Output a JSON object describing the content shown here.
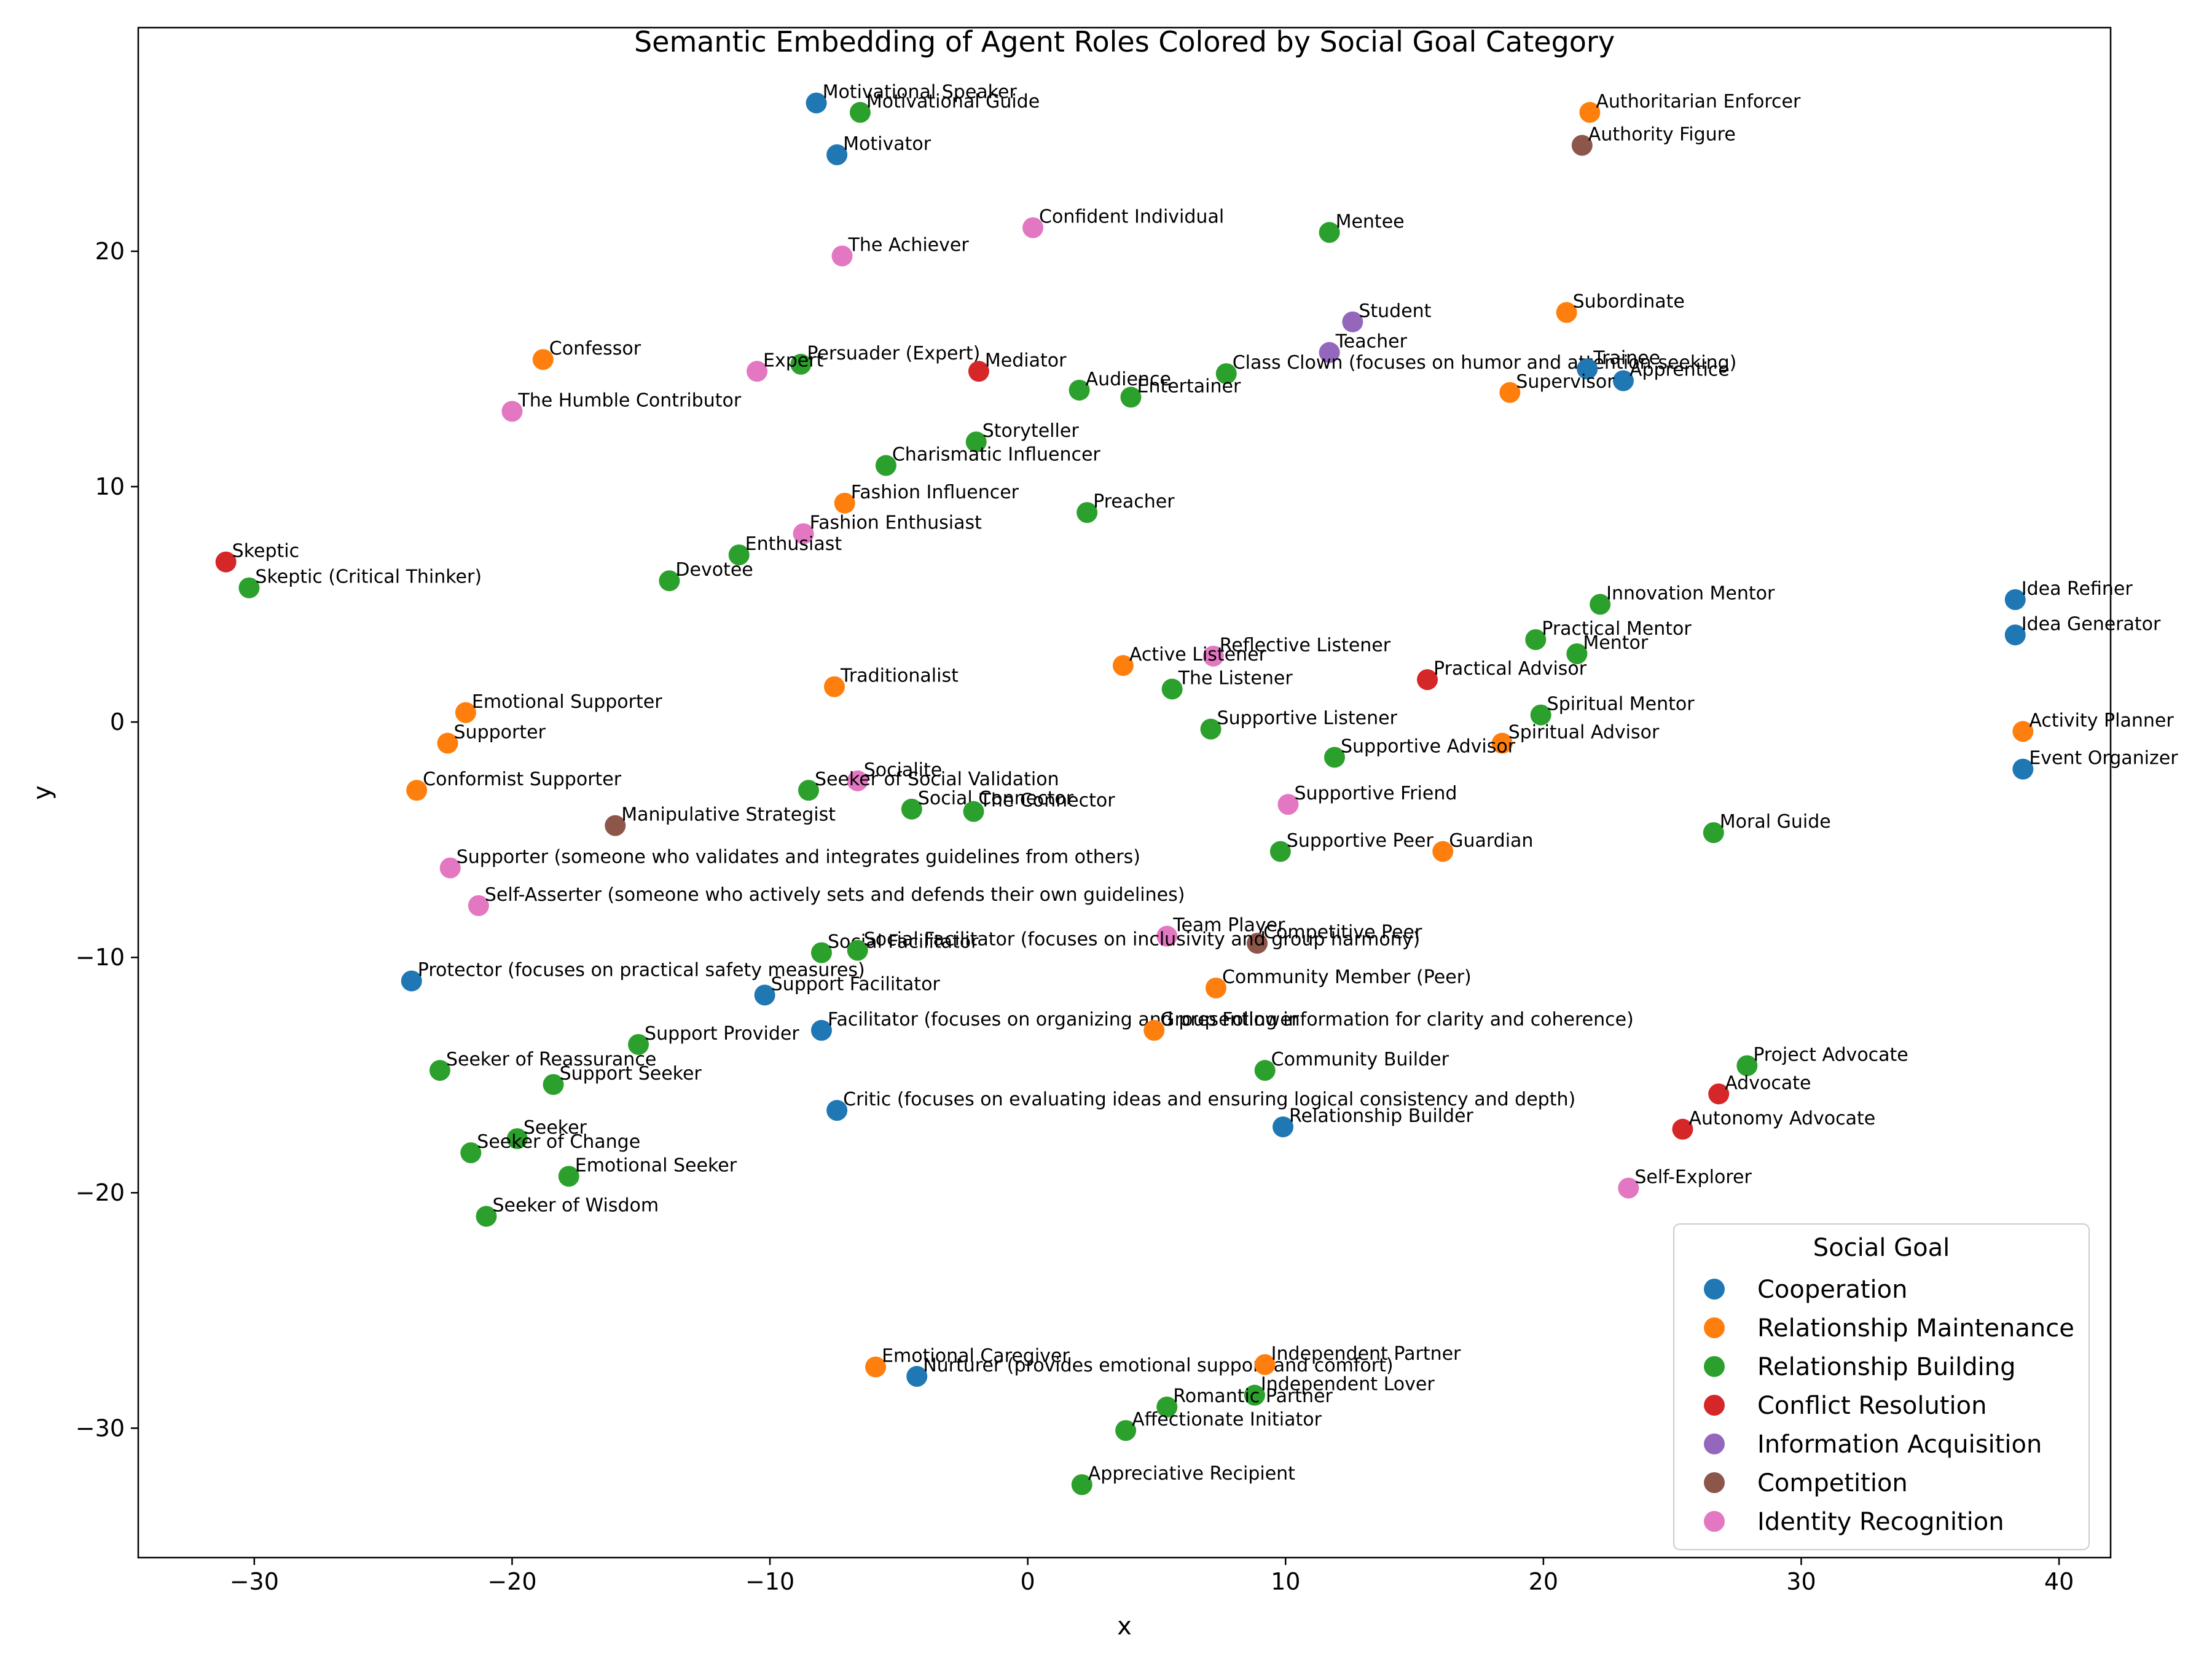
{
  "chart_data": {
    "type": "scatter",
    "title": "Semantic Embedding of Agent Roles Colored by Social Goal Category",
    "xlabel": "x",
    "ylabel": "y",
    "xlim": [
      -34.5,
      42
    ],
    "ylim": [
      -35.5,
      29.5
    ],
    "xticks": [
      -30,
      -20,
      -10,
      0,
      10,
      20,
      30,
      40
    ],
    "yticks": [
      -30,
      -20,
      -10,
      0,
      10,
      20
    ],
    "grid": false,
    "legend": {
      "title": "Social Goal",
      "placement": "lower-right",
      "entries": [
        {
          "name": "Cooperation",
          "color": "#1f77b4"
        },
        {
          "name": "Relationship Maintenance",
          "color": "#ff7f0e"
        },
        {
          "name": "Relationship Building",
          "color": "#2ca02c"
        },
        {
          "name": "Conflict Resolution",
          "color": "#d62728"
        },
        {
          "name": "Information Acquisition",
          "color": "#9467bd"
        },
        {
          "name": "Competition",
          "color": "#8c564b"
        },
        {
          "name": "Identity Recognition",
          "color": "#e377c2"
        }
      ]
    },
    "points": [
      {
        "label": "Motivational Speaker",
        "x": -8.2,
        "y": 26.3,
        "group": "Cooperation"
      },
      {
        "label": "Motivational Guide",
        "x": -6.5,
        "y": 25.9,
        "group": "Relationship Building"
      },
      {
        "label": "Motivator",
        "x": -7.4,
        "y": 24.1,
        "group": "Cooperation"
      },
      {
        "label": "Authoritarian Enforcer",
        "x": 21.8,
        "y": 25.9,
        "group": "Relationship Maintenance"
      },
      {
        "label": "Authority Figure",
        "x": 21.5,
        "y": 24.5,
        "group": "Competition"
      },
      {
        "label": "Confident Individual",
        "x": 0.2,
        "y": 21.0,
        "group": "Identity Recognition"
      },
      {
        "label": "Mentee",
        "x": 11.7,
        "y": 20.8,
        "group": "Relationship Building"
      },
      {
        "label": "The Achiever",
        "x": -7.2,
        "y": 19.8,
        "group": "Identity Recognition"
      },
      {
        "label": "Student",
        "x": 12.6,
        "y": 17.0,
        "group": "Information Acquisition"
      },
      {
        "label": "Subordinate",
        "x": 20.9,
        "y": 17.4,
        "group": "Relationship Maintenance"
      },
      {
        "label": "Teacher",
        "x": 11.7,
        "y": 15.7,
        "group": "Information Acquisition"
      },
      {
        "label": "Confessor",
        "x": -18.8,
        "y": 15.4,
        "group": "Relationship Maintenance"
      },
      {
        "label": "Persuader (Expert)",
        "x": -8.8,
        "y": 15.2,
        "group": "Relationship Building"
      },
      {
        "label": "Expert",
        "x": -10.5,
        "y": 14.9,
        "group": "Identity Recognition"
      },
      {
        "label": "Mediator",
        "x": -1.9,
        "y": 14.9,
        "group": "Conflict Resolution"
      },
      {
        "label": "Class Clown (focuses on humor and attention-seeking)",
        "x": 7.7,
        "y": 14.8,
        "group": "Relationship Building"
      },
      {
        "label": "Trainee",
        "x": 21.7,
        "y": 15.0,
        "group": "Cooperation"
      },
      {
        "label": "Apprentice",
        "x": 23.1,
        "y": 14.5,
        "group": "Cooperation"
      },
      {
        "label": "Audience",
        "x": 2.0,
        "y": 14.1,
        "group": "Relationship Building"
      },
      {
        "label": "Entertainer",
        "x": 4.0,
        "y": 13.8,
        "group": "Relationship Building"
      },
      {
        "label": "Supervisor",
        "x": 18.7,
        "y": 14.0,
        "group": "Relationship Maintenance"
      },
      {
        "label": "The Humble Contributor",
        "x": -20.0,
        "y": 13.2,
        "group": "Identity Recognition"
      },
      {
        "label": "Storyteller",
        "x": -2.0,
        "y": 11.9,
        "group": "Relationship Building"
      },
      {
        "label": "Charismatic Influencer",
        "x": -5.5,
        "y": 10.9,
        "group": "Relationship Building"
      },
      {
        "label": "Fashion Influencer",
        "x": -7.1,
        "y": 9.3,
        "group": "Relationship Maintenance"
      },
      {
        "label": "Preacher",
        "x": 2.3,
        "y": 8.9,
        "group": "Relationship Building"
      },
      {
        "label": "Fashion Enthusiast",
        "x": -8.7,
        "y": 8.0,
        "group": "Identity Recognition"
      },
      {
        "label": "Skeptic",
        "x": -31.1,
        "y": 6.8,
        "group": "Conflict Resolution"
      },
      {
        "label": "Enthusiast",
        "x": -11.2,
        "y": 7.1,
        "group": "Relationship Building"
      },
      {
        "label": "Skeptic (Critical Thinker)",
        "x": -30.2,
        "y": 5.7,
        "group": "Relationship Building"
      },
      {
        "label": "Devotee",
        "x": -13.9,
        "y": 6.0,
        "group": "Relationship Building"
      },
      {
        "label": "Idea Refiner",
        "x": 38.3,
        "y": 5.2,
        "group": "Cooperation"
      },
      {
        "label": "Innovation Mentor",
        "x": 22.2,
        "y": 5.0,
        "group": "Relationship Building"
      },
      {
        "label": "Idea Generator",
        "x": 38.3,
        "y": 3.7,
        "group": "Cooperation"
      },
      {
        "label": "Practical Mentor",
        "x": 19.7,
        "y": 3.5,
        "group": "Relationship Building"
      },
      {
        "label": "Mentor",
        "x": 21.3,
        "y": 2.9,
        "group": "Relationship Building"
      },
      {
        "label": "Reflective Listener",
        "x": 7.2,
        "y": 2.8,
        "group": "Identity Recognition"
      },
      {
        "label": "Active Listener",
        "x": 3.7,
        "y": 2.4,
        "group": "Relationship Maintenance"
      },
      {
        "label": "Practical Advisor",
        "x": 15.5,
        "y": 1.8,
        "group": "Conflict Resolution"
      },
      {
        "label": "Traditionalist",
        "x": -7.5,
        "y": 1.5,
        "group": "Relationship Maintenance"
      },
      {
        "label": "The Listener",
        "x": 5.6,
        "y": 1.4,
        "group": "Relationship Building"
      },
      {
        "label": "Emotional Supporter",
        "x": -21.8,
        "y": 0.4,
        "group": "Relationship Maintenance"
      },
      {
        "label": "Spiritual Mentor",
        "x": 19.9,
        "y": 0.3,
        "group": "Relationship Building"
      },
      {
        "label": "Supportive Listener",
        "x": 7.1,
        "y": -0.3,
        "group": "Relationship Building"
      },
      {
        "label": "Activity Planner",
        "x": 38.6,
        "y": -0.4,
        "group": "Relationship Maintenance"
      },
      {
        "label": "Supporter",
        "x": -22.5,
        "y": -0.9,
        "group": "Relationship Maintenance"
      },
      {
        "label": "Spiritual Advisor",
        "x": 18.4,
        "y": -0.9,
        "group": "Relationship Maintenance"
      },
      {
        "label": "Supportive Advisor",
        "x": 11.9,
        "y": -1.5,
        "group": "Relationship Building"
      },
      {
        "label": "Event Organizer",
        "x": 38.6,
        "y": -2.0,
        "group": "Cooperation"
      },
      {
        "label": "Socialite",
        "x": -6.6,
        "y": -2.5,
        "group": "Identity Recognition"
      },
      {
        "label": "Conformist Supporter",
        "x": -23.7,
        "y": -2.9,
        "group": "Relationship Maintenance"
      },
      {
        "label": "Seeker of Social Validation",
        "x": -8.5,
        "y": -2.9,
        "group": "Relationship Building"
      },
      {
        "label": "Supportive Friend",
        "x": 10.1,
        "y": -3.5,
        "group": "Identity Recognition"
      },
      {
        "label": "Social Connector",
        "x": -4.5,
        "y": -3.7,
        "group": "Relationship Building"
      },
      {
        "label": "The Connector",
        "x": -2.1,
        "y": -3.8,
        "group": "Relationship Building"
      },
      {
        "label": "Manipulative Strategist",
        "x": -16.0,
        "y": -4.4,
        "group": "Competition"
      },
      {
        "label": "Moral Guide",
        "x": 26.6,
        "y": -4.7,
        "group": "Relationship Building"
      },
      {
        "label": "Supportive Peer",
        "x": 9.8,
        "y": -5.5,
        "group": "Relationship Building"
      },
      {
        "label": "Guardian",
        "x": 16.1,
        "y": -5.5,
        "group": "Relationship Maintenance"
      },
      {
        "label": "Supporter (someone who validates and integrates guidelines from others)",
        "x": -22.4,
        "y": -6.2,
        "group": "Identity Recognition"
      },
      {
        "label": "Self-Asserter (someone who actively sets and defends their own guidelines)",
        "x": -21.3,
        "y": -7.8,
        "group": "Identity Recognition"
      },
      {
        "label": "Team Player",
        "x": 5.4,
        "y": -9.1,
        "group": "Identity Recognition"
      },
      {
        "label": "Competitive Peer",
        "x": 8.9,
        "y": -9.4,
        "group": "Competition"
      },
      {
        "label": "Social Facilitator",
        "x": -8.0,
        "y": -9.8,
        "group": "Relationship Building"
      },
      {
        "label": "Social Facilitator (focuses on inclusivity and group harmony)",
        "x": -6.6,
        "y": -9.7,
        "group": "Relationship Building"
      },
      {
        "label": "Protector (focuses on practical safety measures)",
        "x": -23.9,
        "y": -11.0,
        "group": "Cooperation"
      },
      {
        "label": "Support Facilitator",
        "x": -10.2,
        "y": -11.6,
        "group": "Cooperation"
      },
      {
        "label": "Community Member (Peer)",
        "x": 7.3,
        "y": -11.3,
        "group": "Relationship Maintenance"
      },
      {
        "label": "Facilitator (focuses on organizing and presenting information for clarity and coherence)",
        "x": -8.0,
        "y": -13.1,
        "group": "Cooperation"
      },
      {
        "label": "Group Follower",
        "x": 4.9,
        "y": -13.1,
        "group": "Relationship Maintenance"
      },
      {
        "label": "Support Provider",
        "x": -15.1,
        "y": -13.7,
        "group": "Relationship Building"
      },
      {
        "label": "Project Advocate",
        "x": 27.9,
        "y": -14.6,
        "group": "Relationship Building"
      },
      {
        "label": "Seeker of Reassurance",
        "x": -22.8,
        "y": -14.8,
        "group": "Relationship Building"
      },
      {
        "label": "Community Builder",
        "x": 9.2,
        "y": -14.8,
        "group": "Relationship Building"
      },
      {
        "label": "Support Seeker",
        "x": -18.4,
        "y": -15.4,
        "group": "Relationship Building"
      },
      {
        "label": "Advocate",
        "x": 26.8,
        "y": -15.8,
        "group": "Conflict Resolution"
      },
      {
        "label": "Critic (focuses on evaluating ideas and ensuring logical consistency and depth)",
        "x": -7.4,
        "y": -16.5,
        "group": "Cooperation"
      },
      {
        "label": "Relationship Builder",
        "x": 9.9,
        "y": -17.2,
        "group": "Cooperation"
      },
      {
        "label": "Autonomy Advocate",
        "x": 25.4,
        "y": -17.3,
        "group": "Conflict Resolution"
      },
      {
        "label": "Seeker",
        "x": -19.8,
        "y": -17.7,
        "group": "Relationship Building"
      },
      {
        "label": "Seeker of Change",
        "x": -21.6,
        "y": -18.3,
        "group": "Relationship Building"
      },
      {
        "label": "Emotional Seeker",
        "x": -17.8,
        "y": -19.3,
        "group": "Relationship Building"
      },
      {
        "label": "Self-Explorer",
        "x": 23.3,
        "y": -19.8,
        "group": "Identity Recognition"
      },
      {
        "label": "Seeker of Wisdom",
        "x": -21.0,
        "y": -21.0,
        "group": "Relationship Building"
      },
      {
        "label": "Emotional Caregiver",
        "x": -5.9,
        "y": -27.4,
        "group": "Relationship Maintenance"
      },
      {
        "label": "Nurturer (provides emotional support and comfort)",
        "x": -4.3,
        "y": -27.8,
        "group": "Cooperation"
      },
      {
        "label": "Independent Partner",
        "x": 9.2,
        "y": -27.3,
        "group": "Relationship Maintenance"
      },
      {
        "label": "Independent Lover",
        "x": 8.8,
        "y": -28.6,
        "group": "Relationship Building"
      },
      {
        "label": "Romantic Partner",
        "x": 5.4,
        "y": -29.1,
        "group": "Relationship Building"
      },
      {
        "label": "Affectionate Initiator",
        "x": 3.8,
        "y": -30.1,
        "group": "Relationship Building"
      },
      {
        "label": "Appreciative Recipient",
        "x": 2.1,
        "y": -32.4,
        "group": "Relationship Building"
      }
    ]
  }
}
